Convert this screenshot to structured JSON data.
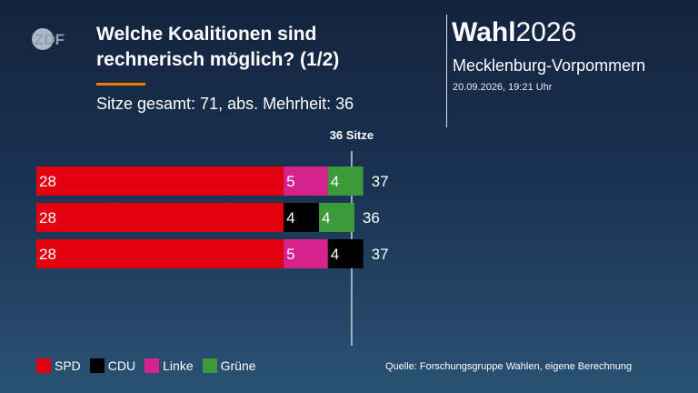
{
  "header": {
    "logo_text": "ZDF",
    "title_line1": "Welche Koalitionen sind",
    "title_line2": "rechnerisch möglich? (1/2)",
    "subtitle": "Sitze gesamt: 71, abs. Mehrheit: 36",
    "accent_color": "#f07a00"
  },
  "brand": {
    "bold": "Wahl",
    "year": "2026",
    "region": "Mecklenburg-Vorpommern",
    "timestamp": "20.09.2026, 19:21 Uhr"
  },
  "chart_data": {
    "type": "bar",
    "orientation": "horizontal",
    "stacked": true,
    "majority_label": "36 Sitze",
    "majority_value": 36,
    "total_seats": 71,
    "colors": {
      "SPD": "#e3000f",
      "CDU": "#000000",
      "Linke": "#d6228a",
      "Grüne": "#3d9a3a"
    },
    "rows": [
      {
        "segments": [
          {
            "party": "SPD",
            "value": 28
          },
          {
            "party": "Linke",
            "value": 5
          },
          {
            "party": "Grüne",
            "value": 4
          }
        ],
        "total": 37
      },
      {
        "segments": [
          {
            "party": "SPD",
            "value": 28
          },
          {
            "party": "CDU",
            "value": 4
          },
          {
            "party": "Grüne",
            "value": 4
          }
        ],
        "total": 36
      },
      {
        "segments": [
          {
            "party": "SPD",
            "value": 28
          },
          {
            "party": "Linke",
            "value": 5
          },
          {
            "party": "CDU",
            "value": 4
          }
        ],
        "total": 37
      }
    ]
  },
  "legend": [
    {
      "label": "SPD",
      "color": "#e3000f"
    },
    {
      "label": "CDU",
      "color": "#000000"
    },
    {
      "label": "Linke",
      "color": "#d6228a"
    },
    {
      "label": "Grüne",
      "color": "#3d9a3a"
    }
  ],
  "source": "Quelle: Forschungsgruppe Wahlen, eigene Berechnung"
}
